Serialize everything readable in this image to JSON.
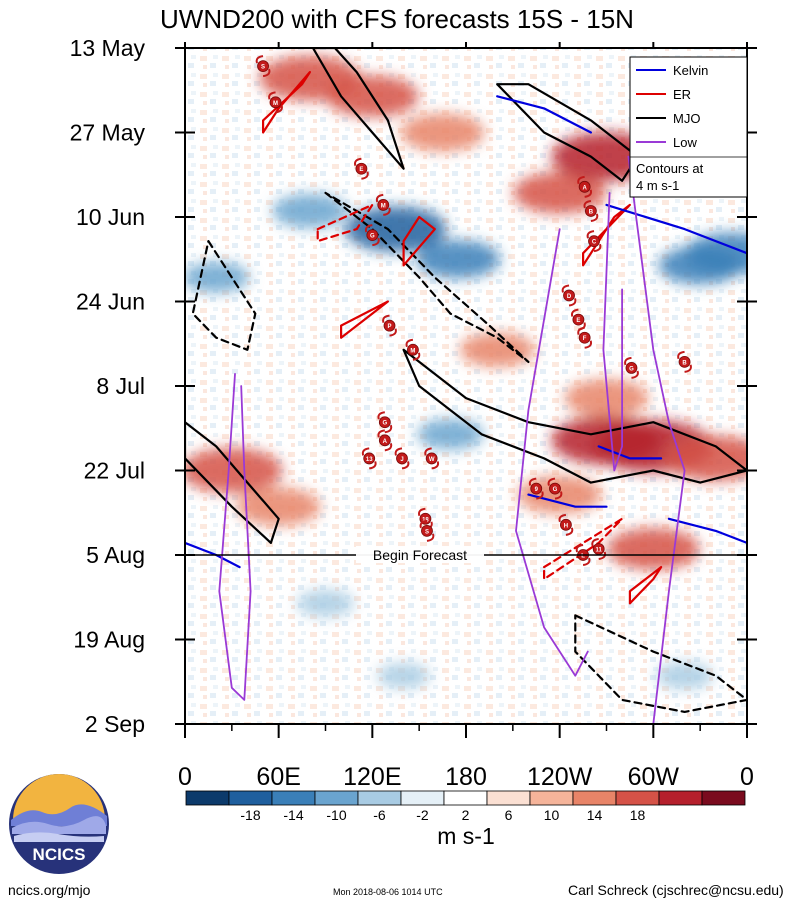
{
  "chart_data": {
    "type": "heatmap",
    "title": "UWND200 with CFS forecasts  15S - 15N",
    "xlabel": "",
    "ylabel": "",
    "x_ticks": [
      "0",
      "60E",
      "120E",
      "180",
      "120W",
      "60W",
      "0"
    ],
    "x_tick_values": [
      0,
      60,
      120,
      180,
      240,
      300,
      360
    ],
    "y_ticks": [
      "13 May",
      "27 May",
      "10 Jun",
      "24 Jun",
      "8 Jul",
      "22 Jul",
      "5 Aug",
      "19 Aug",
      "2 Sep"
    ],
    "y_tick_values": [
      0,
      14,
      28,
      42,
      56,
      70,
      84,
      98,
      112
    ],
    "xlim": [
      0,
      360
    ],
    "ylim": [
      0,
      112
    ],
    "y_direction": "down",
    "colorbar": {
      "unit_label": "m s-1",
      "tick_labels": [
        "-18",
        "-14",
        "-10",
        "-6",
        "-2",
        "2",
        "6",
        "10",
        "14",
        "18"
      ],
      "levels": [
        -18,
        -14,
        -10,
        -6,
        -2,
        2,
        6,
        10,
        14,
        18
      ],
      "colors": [
        "#0c3a6b",
        "#1f5f9e",
        "#3a7fb8",
        "#6aa4cf",
        "#a8cbe3",
        "#e5f0f7",
        "#ffffff",
        "#fbe0d3",
        "#f5b49a",
        "#e88468",
        "#d55247",
        "#b5202c",
        "#7a0b1e"
      ]
    },
    "legend": {
      "position": "top-right",
      "entries": [
        {
          "name": "Kelvin",
          "color": "#0000dd"
        },
        {
          "name": "ER",
          "color": "#dd0000"
        },
        {
          "name": "MJO",
          "color": "#000000"
        },
        {
          "name": "Low",
          "color": "#9a3ad6"
        }
      ],
      "note": "Contours at\n4 m s-1"
    },
    "forecast_line": {
      "label": "Begin Forecast",
      "day": 84
    },
    "anomaly_blobs": [
      {
        "lon": 80,
        "day": 5,
        "value": 14
      },
      {
        "lon": 120,
        "day": 8,
        "value": 12
      },
      {
        "lon": 165,
        "day": 14,
        "value": 10
      },
      {
        "lon": 80,
        "day": 27,
        "value": -8
      },
      {
        "lon": 135,
        "day": 30,
        "value": -14
      },
      {
        "lon": 175,
        "day": 35,
        "value": -10
      },
      {
        "lon": 240,
        "day": 24,
        "value": 12
      },
      {
        "lon": 270,
        "day": 18,
        "value": 16
      },
      {
        "lon": 330,
        "day": 36,
        "value": -10
      },
      {
        "lon": 350,
        "day": 34,
        "value": -12
      },
      {
        "lon": 20,
        "day": 38,
        "value": -6
      },
      {
        "lon": 200,
        "day": 50,
        "value": 8
      },
      {
        "lon": 270,
        "day": 58,
        "value": 10
      },
      {
        "lon": 270,
        "day": 65,
        "value": 16
      },
      {
        "lon": 300,
        "day": 66,
        "value": 18
      },
      {
        "lon": 340,
        "day": 68,
        "value": 14
      },
      {
        "lon": 30,
        "day": 70,
        "value": 14
      },
      {
        "lon": 60,
        "day": 76,
        "value": 10
      },
      {
        "lon": 240,
        "day": 74,
        "value": 10
      },
      {
        "lon": 300,
        "day": 83,
        "value": 12
      },
      {
        "lon": 170,
        "day": 64,
        "value": -6
      },
      {
        "lon": 90,
        "day": 92,
        "value": -4
      },
      {
        "lon": 220,
        "day": 96,
        "value": 6
      },
      {
        "lon": 320,
        "day": 104,
        "value": -4
      },
      {
        "lon": 140,
        "day": 104,
        "value": -3
      },
      {
        "lon": 30,
        "day": 100,
        "value": 4
      }
    ],
    "contours": [
      {
        "name": "MJO",
        "style": "solid",
        "points": [
          [
            82,
            0
          ],
          [
            100,
            8
          ],
          [
            120,
            14
          ],
          [
            140,
            20
          ],
          [
            130,
            12
          ],
          [
            110,
            4
          ],
          [
            96,
            0
          ]
        ]
      },
      {
        "name": "MJO",
        "style": "solid",
        "points": [
          [
            0,
            62
          ],
          [
            20,
            66
          ],
          [
            40,
            72
          ],
          [
            60,
            78
          ],
          [
            55,
            82
          ],
          [
            30,
            76
          ],
          [
            0,
            68
          ]
        ]
      },
      {
        "name": "MJO",
        "style": "solid",
        "points": [
          [
            140,
            50
          ],
          [
            180,
            58
          ],
          [
            220,
            62
          ],
          [
            260,
            64
          ],
          [
            300,
            62
          ],
          [
            340,
            66
          ],
          [
            360,
            70
          ],
          [
            330,
            72
          ],
          [
            300,
            70
          ],
          [
            260,
            72
          ],
          [
            230,
            68
          ],
          [
            190,
            64
          ],
          [
            150,
            56
          ]
        ]
      },
      {
        "name": "MJO",
        "style": "solid",
        "points": [
          [
            200,
            6
          ],
          [
            230,
            14
          ],
          [
            260,
            18
          ],
          [
            280,
            22
          ],
          [
            290,
            18
          ],
          [
            260,
            12
          ],
          [
            220,
            6
          ]
        ]
      },
      {
        "name": "MJO",
        "style": "dashed",
        "points": [
          [
            90,
            24
          ],
          [
            120,
            30
          ],
          [
            150,
            38
          ],
          [
            170,
            44
          ],
          [
            200,
            48
          ],
          [
            220,
            52
          ],
          [
            195,
            46
          ],
          [
            160,
            38
          ],
          [
            130,
            30
          ]
        ]
      },
      {
        "name": "MJO",
        "style": "dashed",
        "points": [
          [
            15,
            32
          ],
          [
            30,
            38
          ],
          [
            45,
            44
          ],
          [
            40,
            50
          ],
          [
            20,
            48
          ],
          [
            5,
            44
          ]
        ]
      },
      {
        "name": "MJO",
        "style": "dashed",
        "points": [
          [
            250,
            94
          ],
          [
            300,
            100
          ],
          [
            340,
            104
          ],
          [
            360,
            108
          ],
          [
            320,
            110
          ],
          [
            280,
            108
          ],
          [
            250,
            100
          ]
        ]
      },
      {
        "name": "ER",
        "style": "solid",
        "points": [
          [
            50,
            12
          ],
          [
            75,
            6
          ],
          [
            80,
            4
          ],
          [
            60,
            10
          ],
          [
            50,
            14
          ]
        ]
      },
      {
        "name": "ER",
        "style": "solid",
        "points": [
          [
            140,
            36
          ],
          [
            160,
            30
          ],
          [
            150,
            28
          ],
          [
            140,
            32
          ]
        ]
      },
      {
        "name": "ER",
        "style": "solid",
        "points": [
          [
            100,
            46
          ],
          [
            130,
            42
          ],
          [
            120,
            44
          ],
          [
            100,
            48
          ]
        ]
      },
      {
        "name": "ER",
        "style": "solid",
        "points": [
          [
            255,
            34
          ],
          [
            285,
            26
          ],
          [
            275,
            28
          ],
          [
            255,
            36
          ]
        ]
      },
      {
        "name": "ER",
        "style": "solid",
        "points": [
          [
            285,
            90
          ],
          [
            305,
            86
          ],
          [
            300,
            88
          ],
          [
            285,
            92
          ]
        ]
      },
      {
        "name": "ER",
        "style": "dashed",
        "points": [
          [
            85,
            30
          ],
          [
            120,
            26
          ],
          [
            110,
            30
          ],
          [
            85,
            32
          ]
        ]
      },
      {
        "name": "ER",
        "style": "dashed",
        "points": [
          [
            230,
            86
          ],
          [
            280,
            78
          ],
          [
            265,
            82
          ],
          [
            230,
            88
          ]
        ]
      },
      {
        "name": "Kelvin",
        "style": "solid",
        "points": [
          [
            200,
            8
          ],
          [
            230,
            10
          ],
          [
            260,
            14
          ]
        ]
      },
      {
        "name": "Kelvin",
        "style": "solid",
        "points": [
          [
            270,
            26
          ],
          [
            320,
            30
          ],
          [
            360,
            34
          ]
        ]
      },
      {
        "name": "Kelvin",
        "style": "solid",
        "points": [
          [
            0,
            82
          ],
          [
            20,
            84
          ],
          [
            35,
            86
          ]
        ]
      },
      {
        "name": "Kelvin",
        "style": "solid",
        "points": [
          [
            310,
            78
          ],
          [
            340,
            80
          ],
          [
            360,
            82
          ]
        ]
      },
      {
        "name": "Kelvin",
        "style": "solid",
        "points": [
          [
            220,
            74
          ],
          [
            250,
            76
          ],
          [
            270,
            76
          ]
        ]
      },
      {
        "name": "Kelvin",
        "style": "solid",
        "points": [
          [
            265,
            66
          ],
          [
            285,
            68
          ],
          [
            305,
            68
          ]
        ]
      },
      {
        "name": "Low",
        "style": "solid",
        "points": [
          [
            32,
            54
          ],
          [
            28,
            70
          ],
          [
            22,
            90
          ],
          [
            30,
            106
          ],
          [
            38,
            108
          ],
          [
            42,
            90
          ],
          [
            38,
            70
          ],
          [
            36,
            56
          ]
        ]
      },
      {
        "name": "Low",
        "style": "solid",
        "points": [
          [
            240,
            30
          ],
          [
            220,
            60
          ],
          [
            212,
            80
          ],
          [
            230,
            96
          ],
          [
            250,
            104
          ],
          [
            258,
            100
          ]
        ]
      },
      {
        "name": "Low",
        "style": "solid",
        "points": [
          [
            272,
            24
          ],
          [
            268,
            50
          ],
          [
            275,
            70
          ],
          [
            280,
            66
          ],
          [
            280,
            40
          ]
        ]
      },
      {
        "name": "Low",
        "style": "solid",
        "points": [
          [
            284,
            18
          ],
          [
            290,
            30
          ],
          [
            300,
            50
          ],
          [
            310,
            62
          ],
          [
            320,
            70
          ],
          [
            310,
            90
          ],
          [
            300,
            112
          ]
        ]
      }
    ],
    "storm_markers": [
      {
        "label": "S",
        "lon": 50,
        "day": 3
      },
      {
        "label": "M",
        "lon": 58,
        "day": 9
      },
      {
        "label": "E",
        "lon": 113,
        "day": 20
      },
      {
        "label": "M",
        "lon": 127,
        "day": 26
      },
      {
        "label": "G",
        "lon": 120,
        "day": 31
      },
      {
        "label": "A",
        "lon": 256,
        "day": 23
      },
      {
        "label": "B",
        "lon": 260,
        "day": 27
      },
      {
        "label": "C",
        "lon": 262,
        "day": 32
      },
      {
        "label": "D",
        "lon": 246,
        "day": 41
      },
      {
        "label": "E",
        "lon": 252,
        "day": 45
      },
      {
        "label": "F",
        "lon": 256,
        "day": 48
      },
      {
        "label": "P",
        "lon": 131,
        "day": 46
      },
      {
        "label": "M",
        "lon": 146,
        "day": 50
      },
      {
        "label": "G",
        "lon": 286,
        "day": 53
      },
      {
        "label": "B",
        "lon": 320,
        "day": 52
      },
      {
        "label": "G",
        "lon": 128,
        "day": 62
      },
      {
        "label": "A",
        "lon": 128,
        "day": 65
      },
      {
        "label": "13",
        "lon": 118,
        "day": 68
      },
      {
        "label": "J",
        "lon": 139,
        "day": 68
      },
      {
        "label": "W",
        "lon": 158,
        "day": 68
      },
      {
        "label": "9",
        "lon": 225,
        "day": 73
      },
      {
        "label": "G",
        "lon": 237,
        "day": 73
      },
      {
        "label": "18",
        "lon": 154,
        "day": 78
      },
      {
        "label": "H",
        "lon": 244,
        "day": 79
      },
      {
        "label": "L",
        "lon": 255,
        "day": 84
      },
      {
        "label": "11",
        "lon": 265,
        "day": 83
      },
      {
        "label": "S",
        "lon": 155,
        "day": 80
      }
    ]
  },
  "logo": {
    "text": "NCICS"
  },
  "footer": {
    "left": "ncics.org/mjo",
    "center": "Mon 2018-08-06 1014 UTC",
    "right": "Carl Schreck (cjschrec@ncsu.edu)"
  }
}
